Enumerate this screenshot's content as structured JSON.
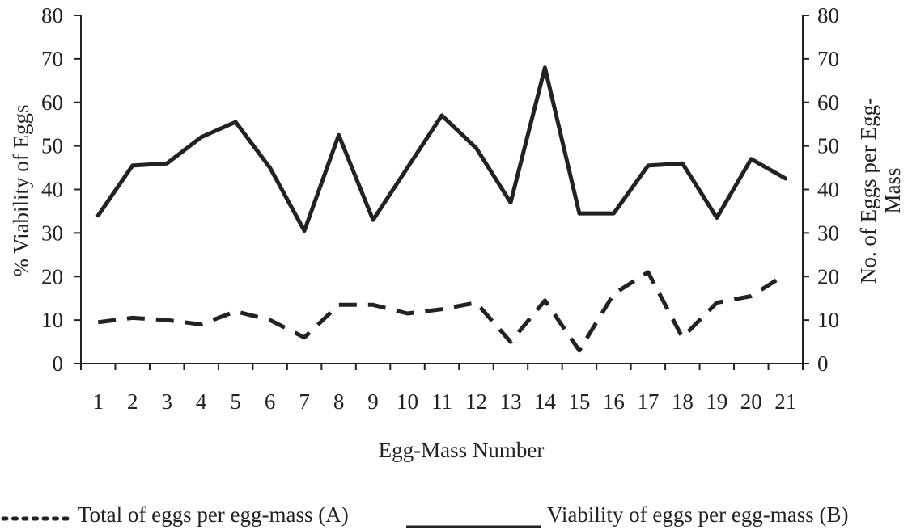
{
  "chart_data": {
    "type": "line",
    "title": "",
    "xlabel": "Egg-Mass Number",
    "ylabel_left": "% Viability of Eggs",
    "ylabel_right_lines": [
      "No. of Eggs per Egg-",
      "Mass"
    ],
    "categories": [
      "1",
      "2",
      "3",
      "4",
      "5",
      "6",
      "7",
      "8",
      "9",
      "10",
      "11",
      "12",
      "13",
      "14",
      "15",
      "16",
      "17",
      "18",
      "19",
      "20",
      "21"
    ],
    "ylim": [
      0,
      80
    ],
    "yticks": [
      0,
      10,
      20,
      30,
      40,
      50,
      60,
      70,
      80
    ],
    "grid": false,
    "legend_position": "bottom",
    "series": [
      {
        "name": "Total of eggs per egg-mass (A)",
        "style": "dashed",
        "legend_swatch": "dotted",
        "color": "#222222",
        "values": [
          9.5,
          10.5,
          10,
          9,
          12,
          10,
          6,
          13.5,
          13.5,
          11.5,
          12.5,
          14,
          5,
          14.5,
          3,
          16,
          21,
          6,
          14,
          15.5,
          20.5
        ]
      },
      {
        "name": "Viability of eggs per egg-mass (B)",
        "style": "solid",
        "legend_swatch": "solid",
        "color": "#222222",
        "values": [
          34,
          45.5,
          46,
          52,
          55.5,
          45,
          30.5,
          52.5,
          33,
          45,
          57,
          49.5,
          37,
          68,
          34.5,
          34.5,
          45.5,
          46,
          33.5,
          47,
          42.5
        ]
      }
    ]
  }
}
